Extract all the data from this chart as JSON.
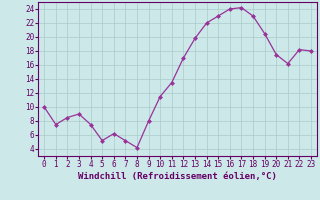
{
  "x": [
    0,
    1,
    2,
    3,
    4,
    5,
    6,
    7,
    8,
    9,
    10,
    11,
    12,
    13,
    14,
    15,
    16,
    17,
    18,
    19,
    20,
    21,
    22,
    23
  ],
  "y": [
    10,
    7.5,
    8.5,
    9,
    7.5,
    5.2,
    6.2,
    5.2,
    4.2,
    8,
    11.5,
    13.5,
    17,
    19.8,
    22,
    23,
    24,
    24.2,
    23,
    20.5,
    17.5,
    16.2,
    18.2,
    18
  ],
  "line_color": "#993399",
  "marker": "D",
  "marker_size": 2,
  "bg_color": "#cce8e8",
  "grid_color": "#aacccc",
  "xlabel": "Windchill (Refroidissement éolien,°C)",
  "xlim": [
    -0.5,
    23.5
  ],
  "ylim": [
    3,
    25
  ],
  "yticks": [
    4,
    6,
    8,
    10,
    12,
    14,
    16,
    18,
    20,
    22,
    24
  ],
  "xticks": [
    0,
    1,
    2,
    3,
    4,
    5,
    6,
    7,
    8,
    9,
    10,
    11,
    12,
    13,
    14,
    15,
    16,
    17,
    18,
    19,
    20,
    21,
    22,
    23
  ],
  "tick_label_fontsize": 5.5,
  "xlabel_fontsize": 6.5,
  "tick_color": "#660066",
  "label_color": "#660066",
  "spine_color": "#660066"
}
